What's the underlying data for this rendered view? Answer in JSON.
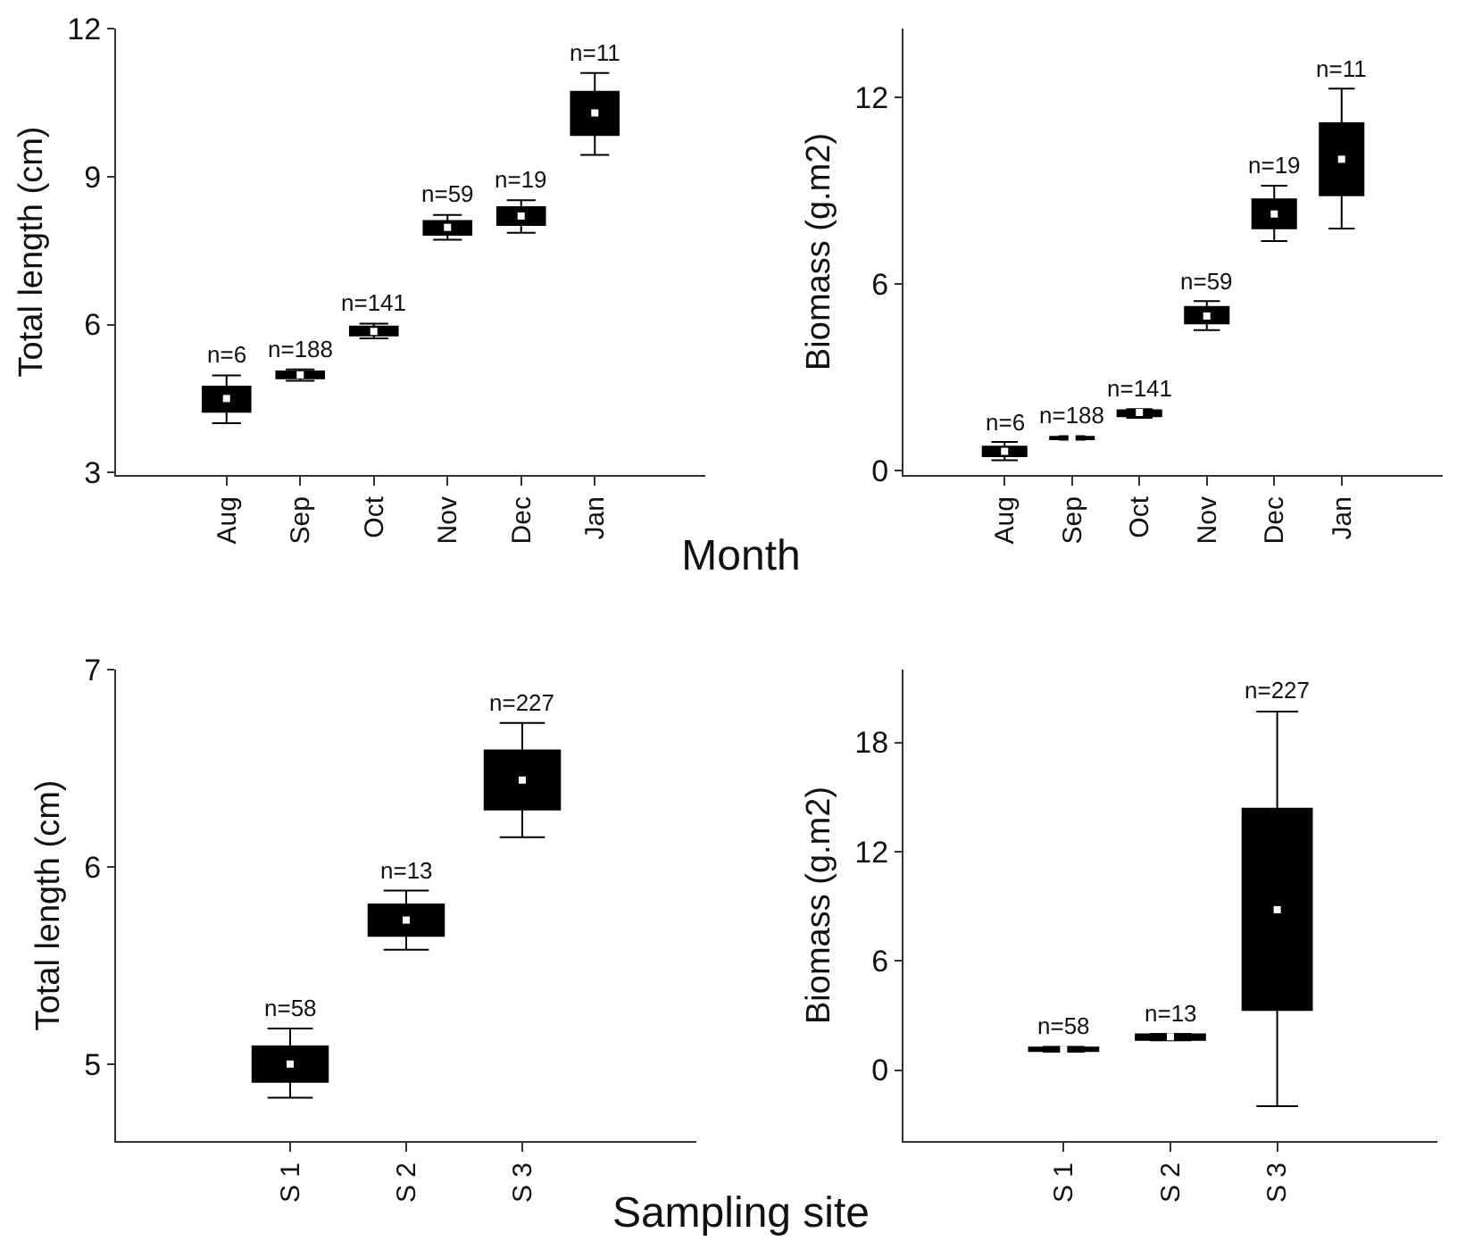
{
  "chart_data": [
    {
      "type": "box",
      "ylabel": "Total length (cm)",
      "xlabel": "Month",
      "categories": [
        "Aug",
        "Sep",
        "Oct",
        "Nov",
        "Dec",
        "Jan"
      ],
      "ylim": [
        2.95,
        12
      ],
      "yticks": [
        3,
        6,
        9,
        12
      ],
      "marker": "square",
      "grid": false,
      "series": [
        {
          "color": "#000000",
          "boxes": [
            {
              "low": 4.0,
              "q1": 4.23,
              "median": 4.5,
              "q3": 4.74,
              "high": 4.97,
              "mean": 4.5
            },
            {
              "low": 4.86,
              "q1": 4.91,
              "median": 4.98,
              "q3": 5.05,
              "high": 5.09,
              "mean": 4.98
            },
            {
              "low": 5.72,
              "q1": 5.78,
              "median": 5.86,
              "q3": 5.96,
              "high": 6.02,
              "mean": 5.86
            },
            {
              "low": 7.72,
              "q1": 7.82,
              "median": 7.97,
              "q3": 8.1,
              "high": 8.22,
              "mean": 7.97
            },
            {
              "low": 7.86,
              "q1": 8.02,
              "median": 8.2,
              "q3": 8.38,
              "high": 8.52,
              "mean": 8.2
            },
            {
              "low": 9.44,
              "q1": 9.84,
              "median": 10.29,
              "q3": 10.72,
              "high": 11.1,
              "mean": 10.29
            }
          ]
        }
      ],
      "annotations": [
        {
          "text": "n=6",
          "x": "Aug",
          "y": 4.97
        },
        {
          "text": "n=188",
          "x": "Sep",
          "y": 5.09
        },
        {
          "text": "n=141",
          "x": "Oct",
          "y": 6.02
        },
        {
          "text": "n=59",
          "x": "Nov",
          "y": 8.22
        },
        {
          "text": "n=19",
          "x": "Dec",
          "y": 8.52
        },
        {
          "text": "n=11",
          "x": "Jan",
          "y": 11.1
        }
      ]
    },
    {
      "type": "box",
      "ylabel": "Biomass (g.m2)",
      "categories": [
        "Aug",
        "Sep",
        "Oct",
        "Nov",
        "Dec",
        "Jan"
      ],
      "ylim": [
        -0.15,
        14.2
      ],
      "yticks": [
        0,
        6,
        12
      ],
      "marker": "square",
      "grid": false,
      "series": [
        {
          "color": "#000000",
          "boxes": [
            {
              "low": 0.32,
              "q1": 0.45,
              "median": 0.61,
              "q3": 0.76,
              "high": 0.91,
              "mean": 0.61
            },
            {
              "low": 0.98,
              "q1": 1.0,
              "median": 1.04,
              "q3": 1.08,
              "high": 1.1,
              "mean": 1.04
            },
            {
              "low": 1.69,
              "q1": 1.74,
              "median": 1.86,
              "q3": 1.93,
              "high": 1.97,
              "mean": 1.86
            },
            {
              "low": 4.51,
              "q1": 4.72,
              "median": 4.96,
              "q3": 5.25,
              "high": 5.44,
              "mean": 4.96
            },
            {
              "low": 7.37,
              "q1": 7.78,
              "median": 8.24,
              "q3": 8.71,
              "high": 9.15,
              "mean": 8.24
            },
            {
              "low": 7.77,
              "q1": 8.84,
              "median": 10.0,
              "q3": 11.16,
              "high": 12.27,
              "mean": 10.0
            }
          ]
        }
      ],
      "annotations": [
        {
          "text": "n=6",
          "x": "Aug",
          "y": 0.91
        },
        {
          "text": "n=188",
          "x": "Sep",
          "y": 1.1
        },
        {
          "text": "n=141",
          "x": "Oct",
          "y": 1.97
        },
        {
          "text": "n=59",
          "x": "Nov",
          "y": 5.44
        },
        {
          "text": "n=19",
          "x": "Dec",
          "y": 9.15
        },
        {
          "text": "n=11",
          "x": "Jan",
          "y": 12.27
        }
      ]
    },
    {
      "type": "box",
      "ylabel": "Total length (cm)",
      "xlabel": "Sampling site",
      "categories": [
        "S 1",
        "S 2",
        "S 3"
      ],
      "ylim": [
        4.61,
        7
      ],
      "yticks": [
        5,
        6,
        7
      ],
      "marker": "square",
      "grid": false,
      "series": [
        {
          "color": "#000000",
          "boxes": [
            {
              "low": 4.83,
              "q1": 4.91,
              "median": 5.0,
              "q3": 5.09,
              "high": 5.18,
              "mean": 5.0
            },
            {
              "low": 5.58,
              "q1": 5.65,
              "median": 5.73,
              "q3": 5.81,
              "high": 5.88,
              "mean": 5.73
            },
            {
              "low": 6.15,
              "q1": 6.29,
              "median": 6.44,
              "q3": 6.59,
              "high": 6.73,
              "mean": 6.44
            }
          ]
        }
      ],
      "annotations": [
        {
          "text": "n=58",
          "x": "S 1",
          "y": 5.18
        },
        {
          "text": "n=13",
          "x": "S 2",
          "y": 5.88
        },
        {
          "text": "n=227",
          "x": "S 3",
          "y": 6.73
        }
      ]
    },
    {
      "type": "box",
      "ylabel": "Biomass (g.m2)",
      "categories": [
        "S 1",
        "S 2",
        "S 3"
      ],
      "ylim": [
        -3.9,
        22
      ],
      "yticks": [
        0,
        6,
        12,
        18
      ],
      "marker": "square",
      "grid": false,
      "series": [
        {
          "color": "#000000",
          "boxes": [
            {
              "low": 1.0,
              "q1": 1.04,
              "median": 1.14,
              "q3": 1.24,
              "high": 1.27,
              "mean": 1.14
            },
            {
              "low": 1.63,
              "q1": 1.66,
              "median": 1.83,
              "q3": 1.96,
              "high": 1.99,
              "mean": 1.83
            },
            {
              "low": -1.99,
              "q1": 3.3,
              "median": 8.81,
              "q3": 14.36,
              "high": 19.7,
              "mean": 8.81
            }
          ]
        }
      ],
      "annotations": [
        {
          "text": "n=58",
          "x": "S 1",
          "y": 1.27
        },
        {
          "text": "n=13",
          "x": "S 2",
          "y": 1.99
        },
        {
          "text": "n=227",
          "x": "S 3",
          "y": 19.7
        }
      ]
    }
  ]
}
